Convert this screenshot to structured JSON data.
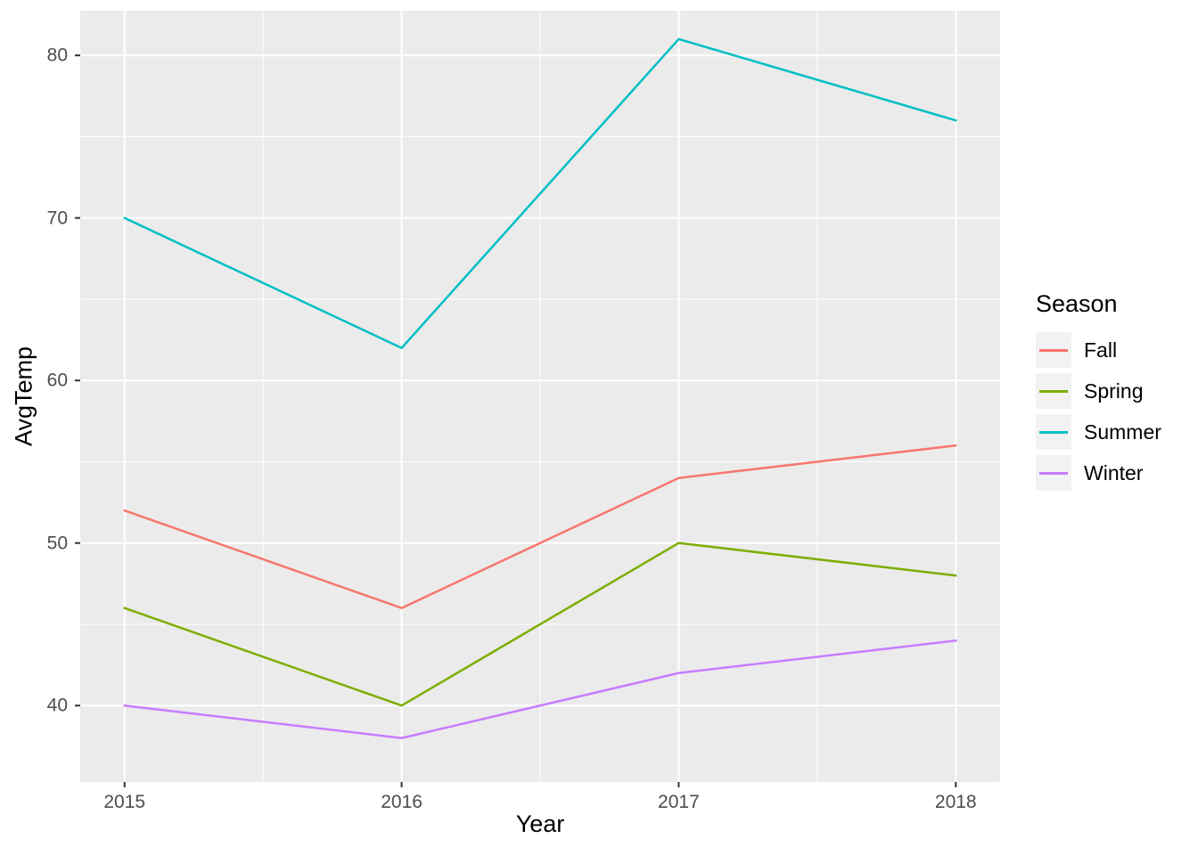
{
  "chart_data": {
    "type": "line",
    "title": "",
    "xlabel": "Year",
    "ylabel": "AvgTemp",
    "legend_title": "Season",
    "legend_position": "right",
    "x": [
      2015,
      2016,
      2017,
      2018
    ],
    "x_tick_labels": [
      "2015",
      "2016",
      "2017",
      "2018"
    ],
    "y_ticks": [
      40,
      50,
      60,
      70,
      80
    ],
    "y_minor_ticks": [
      45,
      55,
      65,
      75
    ],
    "x_minor_ticks": [
      2015.5,
      2016.5,
      2017.5
    ],
    "xlim": [
      2014.84,
      2018.16
    ],
    "ylim": [
      35.3,
      82.75
    ],
    "grid": true,
    "series": [
      {
        "name": "Fall",
        "color": "#F8766D",
        "values": [
          52,
          46,
          54,
          56
        ]
      },
      {
        "name": "Spring",
        "color": "#7CAE00",
        "values": [
          46,
          40,
          50,
          48
        ]
      },
      {
        "name": "Summer",
        "color": "#00BFC4",
        "values": [
          70,
          62,
          81,
          76
        ]
      },
      {
        "name": "Winter",
        "color": "#C77CFF",
        "values": [
          40,
          38,
          42,
          44
        ]
      }
    ],
    "colors": {
      "figure_background": "#FFFFFF",
      "panel_background": "#EBEBEB",
      "grid_major": "#FFFFFF",
      "grid_minor": "#FFFFFF",
      "tick_text": "#4D4D4D",
      "axis_title": "#000000",
      "tick_mark": "#333333",
      "legend_key_background": "#F2F2F2"
    }
  }
}
